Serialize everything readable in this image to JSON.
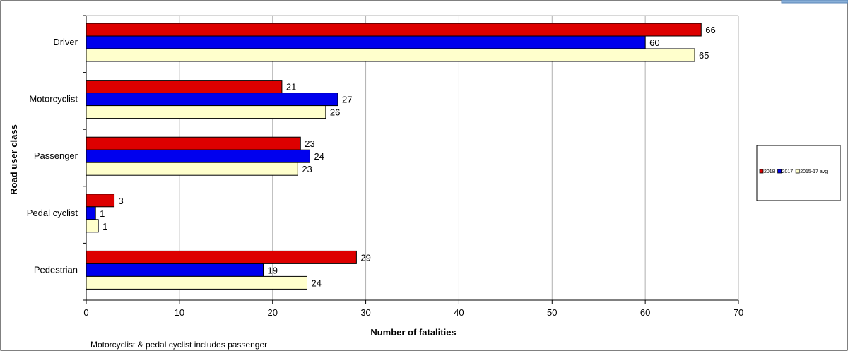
{
  "chart_data": {
    "type": "bar",
    "orientation": "horizontal",
    "categories": [
      "Driver",
      "Motorcyclist",
      "Passenger",
      "Pedal cyclist",
      "Pedestrian"
    ],
    "series": [
      {
        "name": "2018",
        "values": [
          66,
          21,
          23,
          3,
          29
        ],
        "labels": [
          "66",
          "21",
          "23",
          "3",
          "29"
        ],
        "color": "#dd0000"
      },
      {
        "name": "2017",
        "values": [
          60,
          27,
          24,
          1,
          19
        ],
        "labels": [
          "60",
          "27",
          "24",
          "1",
          "19"
        ],
        "color": "#0000ee"
      },
      {
        "name": "2015-17 avg",
        "values": [
          65.3,
          25.7,
          22.7,
          1.3,
          23.7
        ],
        "labels": [
          "65",
          "26",
          "23",
          "1",
          "24"
        ],
        "color": "#ffffcc"
      }
    ],
    "xlabel": "Number of fatalities",
    "ylabel": "Road user class",
    "xlim": [
      0,
      70
    ],
    "xticks": [
      0,
      10,
      20,
      30,
      40,
      50,
      60,
      70
    ],
    "grid": true,
    "legend_position": "right",
    "note": "Motorcyclist & pedal cyclist includes passenger"
  }
}
